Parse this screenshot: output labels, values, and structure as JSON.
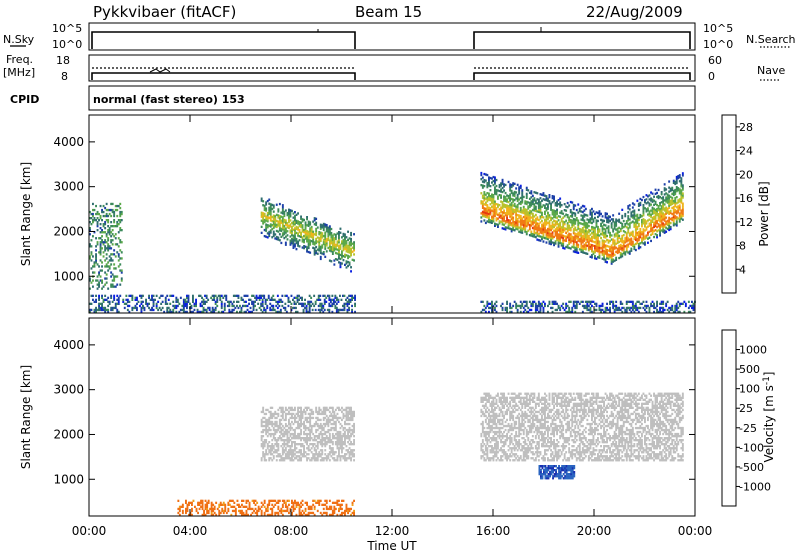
{
  "header": {
    "title": "Pykkvibaer (fitACF)",
    "beam": "Beam 15",
    "date": "22/Aug/2009"
  },
  "strip_labels": {
    "nsky": "N.Sky",
    "nsky_ticks": [
      "10^5",
      "10^0"
    ],
    "nsearch": "N.Search",
    "nsearch_ticks": [
      "10^5",
      "10^0"
    ],
    "freq_line1": "Freq.",
    "freq_line2": "[MHz]",
    "freq_ticks": [
      "18",
      "8"
    ],
    "nave": "Nave",
    "nave_ticks": [
      "60",
      "0"
    ],
    "cpid": "CPID",
    "cpid_value": "normal (fast stereo) 153"
  },
  "colors": {
    "power_scale": [
      "#0a1fe0",
      "#1c3fa8",
      "#2f6e6e",
      "#3c8a5a",
      "#5aa84a",
      "#b8c22c",
      "#f0b41c",
      "#f07a14",
      "#e63a10",
      "#d80c0c"
    ],
    "velocity_scale": [
      "#1a2fb0",
      "#2a64c0",
      "#2e8a5a",
      "#62c04a",
      "#bfbfbf",
      "#bfbfbf",
      "#f0a01c",
      "#f07014",
      "#e83410",
      "#d80c0c"
    ],
    "data_gap_start": 10.5,
    "data_gap_end": 15.5
  },
  "chart_data": [
    {
      "type": "heatmap",
      "title": "Power",
      "ylabel": "Slant Range [km]",
      "xlabel": "Time UT",
      "x_ticks": [
        "00:00",
        "04:00",
        "08:00",
        "12:00",
        "16:00",
        "20:00",
        "00:00"
      ],
      "xlim_hours": [
        0,
        24
      ],
      "ylim": [
        180,
        4600
      ],
      "y_ticks": [
        "1000",
        "2000",
        "3000",
        "4000"
      ],
      "y_tick_values": [
        1000,
        2000,
        3000,
        4000
      ],
      "colorbar": {
        "label": "Power [dB]",
        "ticks": [
          "4",
          "8",
          "12",
          "16",
          "20",
          "24",
          "28"
        ],
        "range": [
          0,
          30
        ]
      },
      "features": [
        {
          "kind": "ground_scatter_band",
          "t": [
            0,
            10.5
          ],
          "range": [
            180,
            550
          ],
          "value": 6
        },
        {
          "kind": "ground_scatter_band",
          "t": [
            15.5,
            24
          ],
          "range": [
            180,
            450
          ],
          "value": 6
        },
        {
          "kind": "echo_arc",
          "t": [
            6.8,
            10.5
          ],
          "range_start": 2350,
          "range_end": 1500,
          "value": 18
        },
        {
          "kind": "echo_v",
          "t": [
            15.5,
            23.5
          ],
          "apex_t": 20.7,
          "apex_range": 1450,
          "edge_range": 2400,
          "value": 24
        },
        {
          "kind": "echo_patch",
          "t": [
            0,
            1.3
          ],
          "range": [
            700,
            2600
          ],
          "value": 10
        }
      ]
    },
    {
      "type": "heatmap",
      "title": "Velocity",
      "ylabel": "Slant Range [km]",
      "xlabel": "Time UT",
      "x_ticks": [
        "00:00",
        "04:00",
        "08:00",
        "12:00",
        "16:00",
        "20:00",
        "00:00"
      ],
      "xlim_hours": [
        0,
        24
      ],
      "ylim": [
        180,
        4600
      ],
      "y_ticks": [
        "1000",
        "2000",
        "3000",
        "4000"
      ],
      "y_tick_values": [
        1000,
        2000,
        3000,
        4000
      ],
      "colorbar": {
        "label": "Velocity [m s-1]",
        "ticks": [
          "1000",
          "500",
          "100",
          "25",
          "-25",
          "-100",
          "-500",
          "-1000"
        ]
      },
      "features": [
        {
          "kind": "ground_scatter",
          "t": [
            6.8,
            10.5
          ],
          "range": [
            1400,
            2600
          ]
        },
        {
          "kind": "ground_scatter",
          "t": [
            15.5,
            23.5
          ],
          "range": [
            1400,
            2900
          ]
        },
        {
          "kind": "negative_flow",
          "t": [
            3.5,
            10.5
          ],
          "range": [
            180,
            500
          ],
          "value": -150
        },
        {
          "kind": "positive_flow",
          "t": [
            17.8,
            19.2
          ],
          "range": [
            1000,
            1300
          ],
          "value": 400
        }
      ]
    }
  ]
}
